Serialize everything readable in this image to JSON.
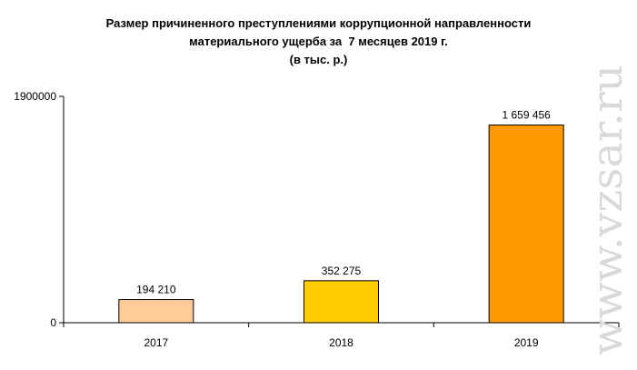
{
  "chart_data": {
    "type": "bar",
    "title_lines": [
      "Размер причиненного преступлениями коррупционной направленности",
      "материального ущерба за  7 месяцев 2019 г.",
      "(в тыс. р.)"
    ],
    "categories": [
      "2017",
      "2018",
      "2019"
    ],
    "values": [
      194210,
      352275,
      1659456
    ],
    "data_labels": [
      "194 210",
      "352 275",
      "1 659 456"
    ],
    "bar_colors": [
      "#FFCC99",
      "#FFCC00",
      "#FF9900"
    ],
    "ylim": [
      0,
      1900000
    ],
    "y_tick_labels": [
      "0",
      "1900000"
    ],
    "xlabel": "",
    "ylabel": "",
    "grid": false,
    "legend": "none"
  },
  "watermark": {
    "text": "www.vzsar.ru",
    "color": "#d9d9d9"
  }
}
